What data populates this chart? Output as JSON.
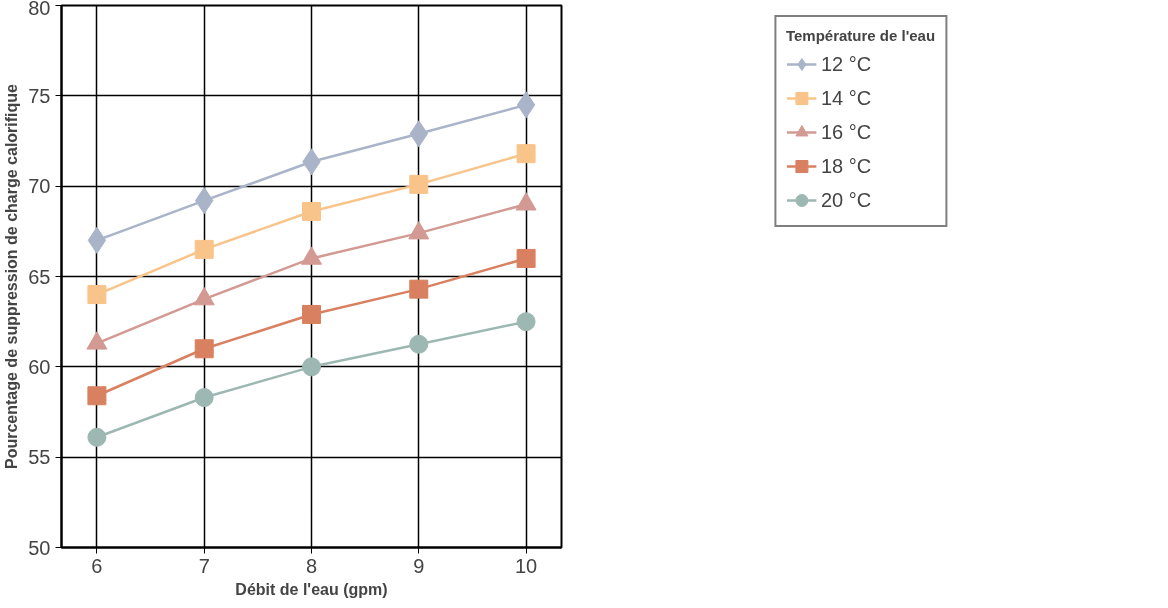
{
  "chart_data": {
    "type": "line",
    "xlabel": "Débit de l'eau (gpm)",
    "ylabel": "Pourcentage de suppression de charge calorifique",
    "legend_title": "Température de l'eau",
    "x": [
      6,
      7,
      8,
      9,
      10
    ],
    "xlim": [
      5.67,
      10.33
    ],
    "xticks": [
      6,
      7,
      8,
      9,
      10
    ],
    "ylim": [
      50,
      80
    ],
    "yticks": [
      50,
      55,
      60,
      65,
      70,
      75,
      80
    ],
    "grid": true,
    "legend": "right",
    "series": [
      {
        "name": "12 °C",
        "color": "#a9b4c8",
        "marker": "diamond",
        "values": [
          67.0,
          69.2,
          71.35,
          72.9,
          74.5
        ]
      },
      {
        "name": "14 °C",
        "color": "#f9c48a",
        "marker": "square",
        "values": [
          64.0,
          66.5,
          68.6,
          70.1,
          71.8
        ]
      },
      {
        "name": "16 °C",
        "color": "#d29a93",
        "marker": "triangle",
        "values": [
          61.3,
          63.75,
          66.0,
          67.4,
          69.0
        ]
      },
      {
        "name": "18 °C",
        "color": "#d98060",
        "marker": "square",
        "values": [
          58.4,
          61.0,
          62.9,
          64.3,
          66.0
        ]
      },
      {
        "name": "20 °C",
        "color": "#9db8b2",
        "marker": "circle",
        "values": [
          56.1,
          58.3,
          60.0,
          61.25,
          62.5
        ]
      }
    ]
  }
}
